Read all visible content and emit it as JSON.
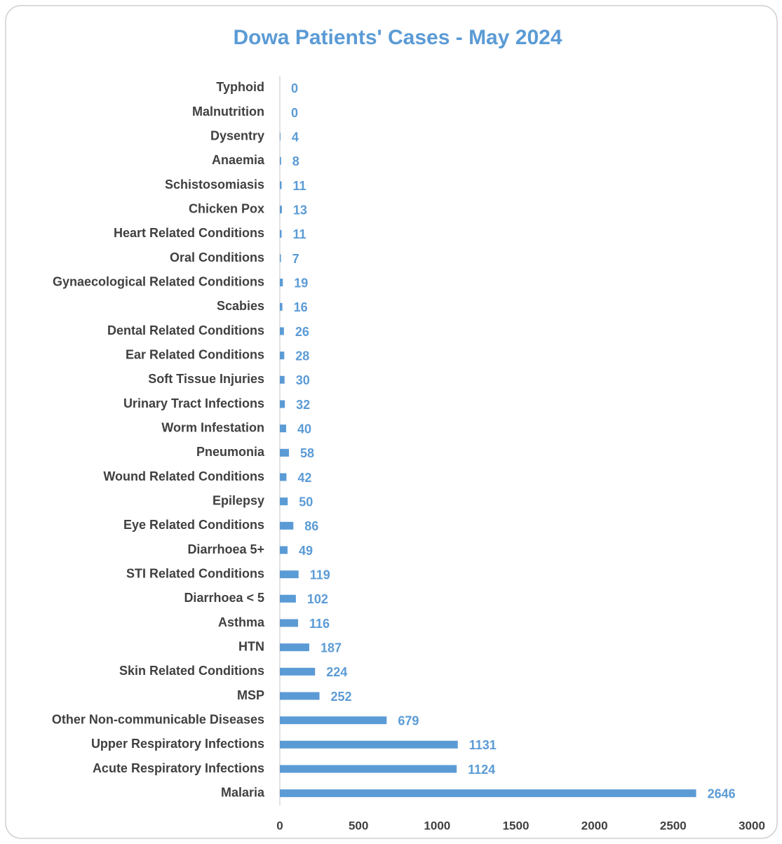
{
  "chart_data": {
    "type": "bar",
    "orientation": "horizontal",
    "title": "Dowa Patients' Cases - May 2024",
    "categories": [
      "Typhoid",
      "Malnutrition",
      "Dysentry",
      "Anaemia",
      "Schistosomiasis",
      "Chicken Pox",
      "Heart Related Conditions",
      "Oral Conditions",
      "Gynaecological Related Conditions",
      "Scabies",
      "Dental Related Conditions",
      "Ear Related Conditions",
      "Soft Tissue Injuries",
      "Urinary Tract Infections",
      "Worm Infestation",
      "Pneumonia",
      "Wound Related Conditions",
      "Epilepsy",
      "Eye Related Conditions",
      "Diarrhoea 5+",
      "STI Related Conditions",
      "Diarrhoea < 5",
      "Asthma",
      "HTN",
      "Skin Related Conditions",
      "MSP",
      "Other Non-communicable Diseases",
      "Upper Respiratory Infections",
      "Acute Respiratory Infections",
      "Malaria"
    ],
    "values": [
      0,
      0,
      4,
      8,
      11,
      13,
      11,
      7,
      19,
      16,
      26,
      28,
      30,
      32,
      40,
      58,
      42,
      50,
      86,
      49,
      119,
      102,
      116,
      187,
      224,
      252,
      679,
      1131,
      1124,
      2646
    ],
    "color": "#5b9bd5",
    "xlim": [
      0,
      3000
    ],
    "xticks": [
      0,
      500,
      1000,
      1500,
      2000,
      2500,
      3000
    ],
    "grid": false
  }
}
